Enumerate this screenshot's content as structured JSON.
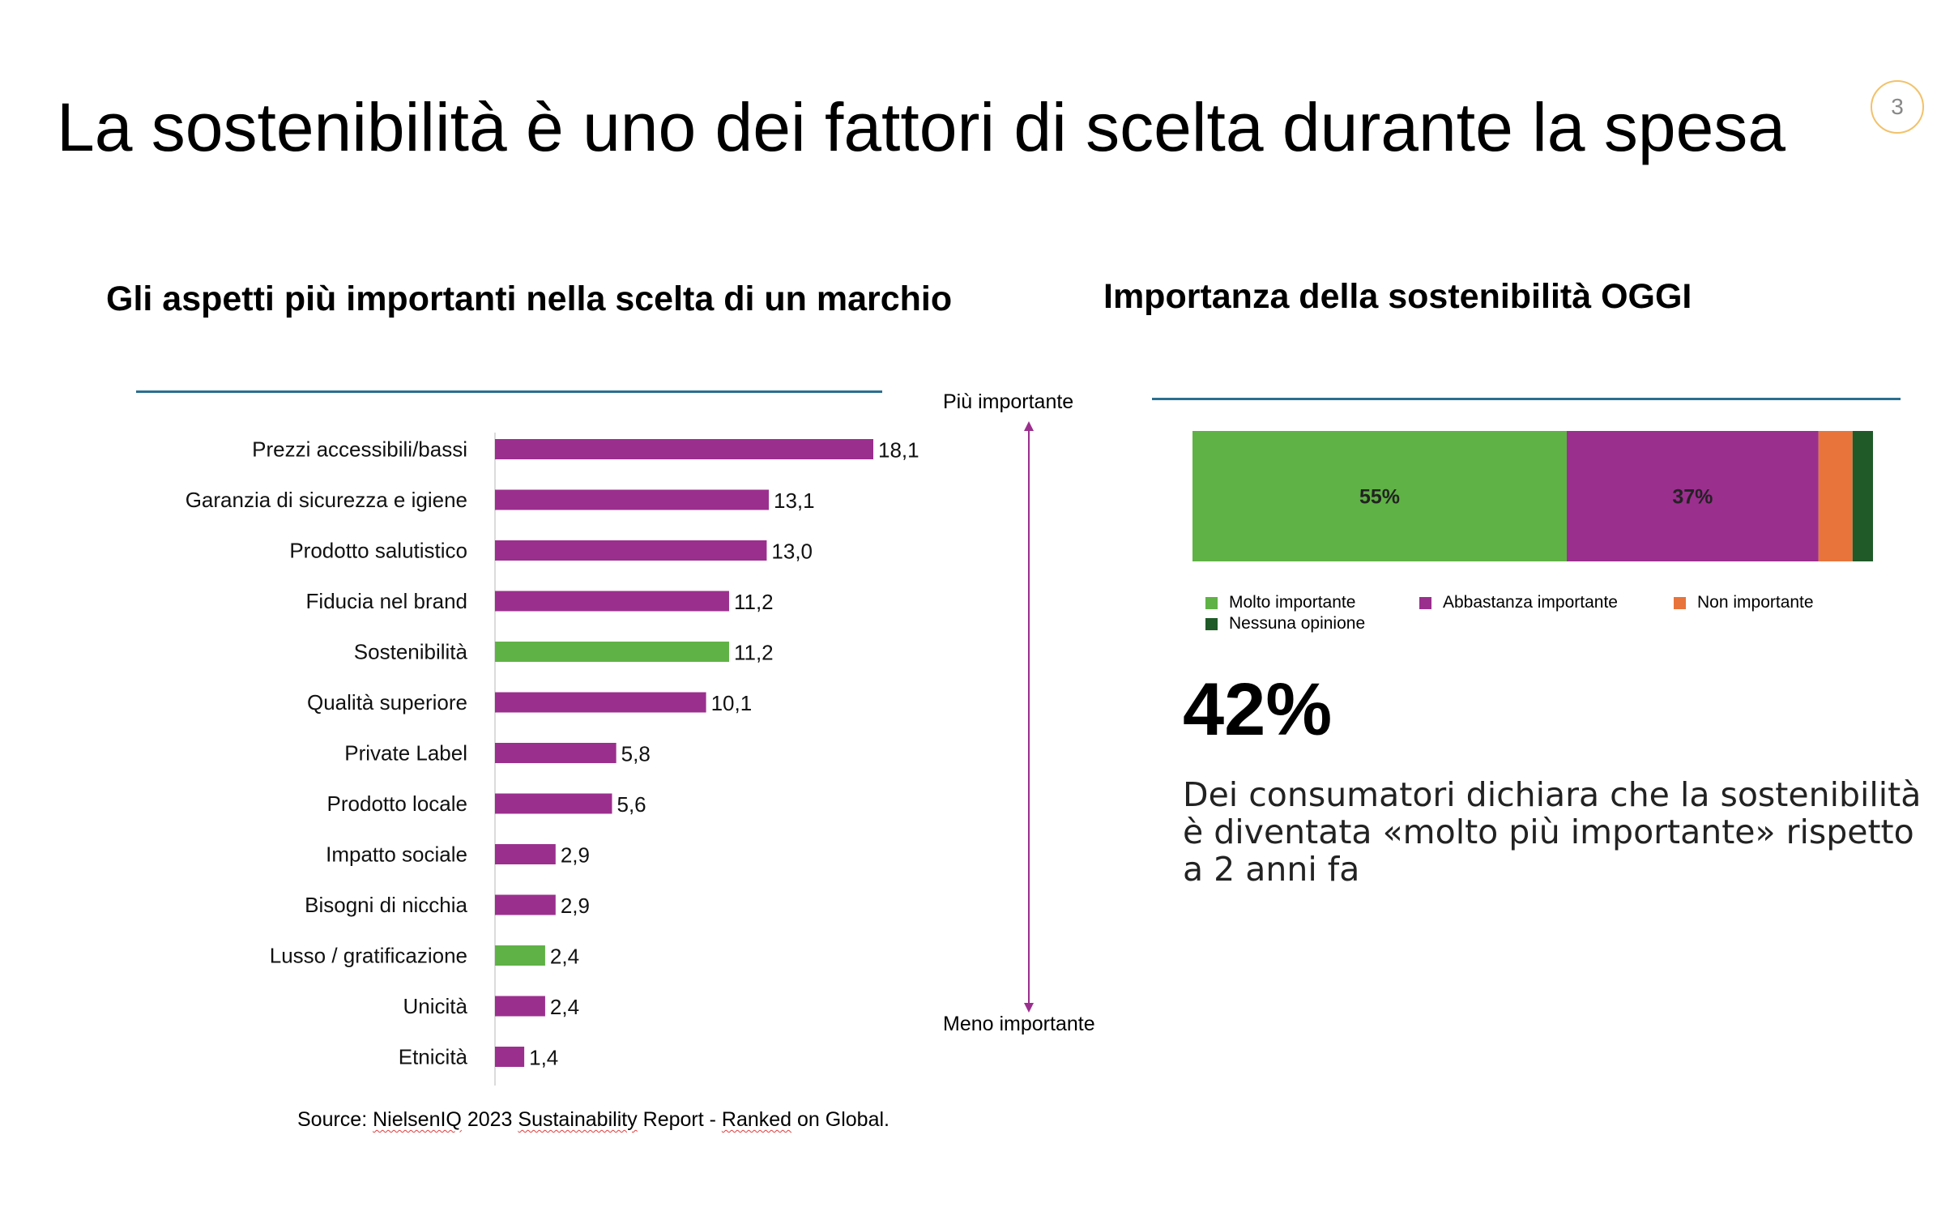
{
  "slide": {
    "title": "La sostenibilità è uno dei fattori di scelta durante la spesa",
    "page_number": "3"
  },
  "colors": {
    "purple": "#9b2f8e",
    "green": "#5fb245",
    "orange": "#e8743b",
    "dark_green": "#1f5a28",
    "rule": "#2a6f8f",
    "page_circle": "#f2c26b"
  },
  "left_chart": {
    "title": "Gli aspetti più importanti nella scelta di un marchio",
    "more_important": "Più importante",
    "less_important": "Meno importante",
    "source": {
      "prefix": "Source: ",
      "part1": "NielsenIQ",
      "part2": " 2023 ",
      "part3": "Sustainability",
      "part4": " Report - ",
      "part5": "Ranked",
      "part6": " on Global."
    }
  },
  "right_chart": {
    "title": "Importanza della sostenibilità OGGI",
    "big_stat": "42%",
    "stat_text": "Dei consumatori dichiara che la sostenibilità è diventata «molto più importante» rispetto a 2 anni fa",
    "legend": [
      {
        "label": "Molto importante",
        "color": "#5fb245"
      },
      {
        "label": "Abbastanza importante",
        "color": "#9b2f8e"
      },
      {
        "label": "Non importante",
        "color": "#e8743b"
      },
      {
        "label": "Nessuna opinione",
        "color": "#1f5a28"
      }
    ]
  },
  "chart_data": [
    {
      "type": "bar",
      "orientation": "horizontal",
      "title": "Gli aspetti più importanti nella scelta di un marchio",
      "categories": [
        "Prezzi accessibili/bassi",
        "Garanzia di sicurezza e igiene",
        "Prodotto salutistico",
        "Fiducia nel brand",
        "Sostenibilità",
        "Qualità superiore",
        "Private Label",
        "Prodotto locale",
        "Impatto sociale",
        "Bisogni di nicchia",
        "Lusso / gratificazione",
        "Unicità",
        "Etnicità"
      ],
      "values": [
        18.1,
        13.1,
        13.0,
        11.2,
        11.2,
        10.1,
        5.8,
        5.6,
        2.9,
        2.9,
        2.4,
        2.4,
        1.4
      ],
      "value_labels": [
        "18,1",
        "13,1",
        "13,0",
        "11,2",
        "11,2",
        "10,1",
        "5,8",
        "5,6",
        "2,9",
        "2,9",
        "2,4",
        "2,4",
        "1,4"
      ],
      "bar_colors": [
        "#9b2f8e",
        "#9b2f8e",
        "#9b2f8e",
        "#9b2f8e",
        "#5fb245",
        "#9b2f8e",
        "#9b2f8e",
        "#9b2f8e",
        "#9b2f8e",
        "#9b2f8e",
        "#5fb245",
        "#9b2f8e",
        "#9b2f8e"
      ],
      "xlim": [
        0,
        18.1
      ],
      "grid": false
    },
    {
      "type": "bar",
      "orientation": "stacked-horizontal",
      "title": "Importanza della sostenibilità OGGI",
      "series": [
        {
          "name": "Molto importante",
          "value": 55,
          "label": "55%",
          "color": "#5fb245"
        },
        {
          "name": "Abbastanza importante",
          "value": 37,
          "label": "37%",
          "color": "#9b2f8e"
        },
        {
          "name": "Non importante",
          "value": 5,
          "label": "",
          "color": "#e8743b"
        },
        {
          "name": "Nessuna opinione",
          "value": 3,
          "label": "",
          "color": "#1f5a28"
        }
      ],
      "xlim": [
        0,
        100
      ],
      "legend": "bottom"
    }
  ]
}
